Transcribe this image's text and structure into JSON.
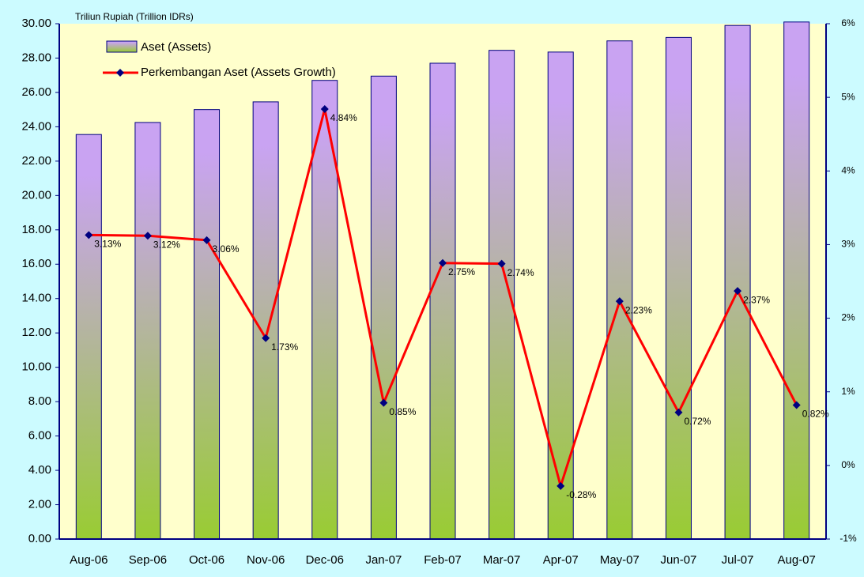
{
  "chart_data": {
    "type": "bar_line",
    "y_label": "Triliun Rupiah (Trillion IDRs)",
    "categories": [
      "Aug-06",
      "Sep-06",
      "Oct-06",
      "Nov-06",
      "Dec-06",
      "Jan-07",
      "Feb-07",
      "Mar-07",
      "Apr-07",
      "May-07",
      "Jun-07",
      "Jul-07",
      "Aug-07"
    ],
    "series": [
      {
        "name": "Aset (Assets)",
        "type": "bar",
        "color": "#c9a3f2",
        "values": [
          23.55,
          24.25,
          25.0,
          25.45,
          26.7,
          26.95,
          27.7,
          28.45,
          28.35,
          29.0,
          29.2,
          29.9,
          30.1
        ]
      },
      {
        "name": "Perkembangan Aset (Assets Growth)",
        "type": "line",
        "axis": "y2",
        "color": "#ff0000",
        "marker_color": "#000080",
        "values": [
          3.13,
          3.12,
          3.06,
          1.73,
          4.84,
          0.85,
          2.75,
          2.74,
          -0.28,
          2.23,
          0.72,
          2.37,
          0.82
        ],
        "value_labels": [
          "3.13%",
          "3.12%",
          "3.06%",
          "1.73%",
          "4.84%",
          "0.85%",
          "2.75%",
          "2.74%",
          "-0.28%",
          "2.23%",
          "0.72%",
          "2.37%",
          "0.82%"
        ]
      }
    ],
    "ylim": [
      0,
      30
    ],
    "yticks": [
      {
        "value": 0,
        "label": "0.00"
      },
      {
        "value": 2,
        "label": "2.00"
      },
      {
        "value": 4,
        "label": "4.00"
      },
      {
        "value": 6,
        "label": "6.00"
      },
      {
        "value": 8,
        "label": "8.00"
      },
      {
        "value": 10,
        "label": "10.00"
      },
      {
        "value": 12,
        "label": "12.00"
      },
      {
        "value": 14,
        "label": "14.00"
      },
      {
        "value": 16,
        "label": "16.00"
      },
      {
        "value": 18,
        "label": "18.00"
      },
      {
        "value": 20,
        "label": "20.00"
      },
      {
        "value": 22,
        "label": "22.00"
      },
      {
        "value": 24,
        "label": "24.00"
      },
      {
        "value": 26,
        "label": "26.00"
      },
      {
        "value": 28,
        "label": "28.00"
      },
      {
        "value": 30,
        "label": "30.00"
      }
    ],
    "y2lim": [
      -1,
      6
    ],
    "y2ticks": [
      {
        "value": -1,
        "label": "-1%"
      },
      {
        "value": 0,
        "label": "0%"
      },
      {
        "value": 1,
        "label": "1%"
      },
      {
        "value": 2,
        "label": "2%"
      },
      {
        "value": 3,
        "label": "3%"
      },
      {
        "value": 4,
        "label": "4%"
      },
      {
        "value": 5,
        "label": "5%"
      },
      {
        "value": 6,
        "label": "6%"
      }
    ],
    "legend": "top-left"
  }
}
